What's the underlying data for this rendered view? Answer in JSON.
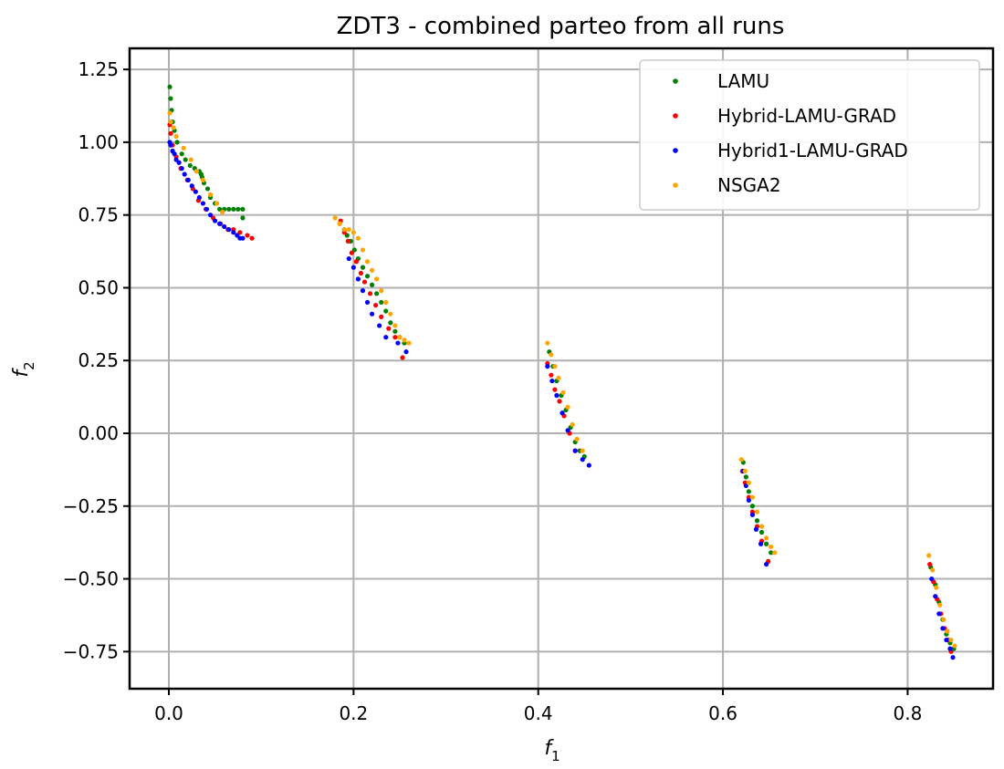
{
  "chart_data": {
    "type": "scatter",
    "title": "ZDT3 - combined parteo from all runs",
    "xlabel": "f",
    "xlabel_sub": "1",
    "ylabel": "f",
    "ylabel_sub": "2",
    "xlim": [
      -0.0425,
      0.8925
    ],
    "ylim": [
      -0.8775,
      1.3225
    ],
    "xticks": [
      0.0,
      0.2,
      0.4,
      0.6,
      0.8
    ],
    "xtick_labels": [
      "0.0",
      "0.2",
      "0.4",
      "0.6",
      "0.8"
    ],
    "yticks": [
      1.25,
      1.0,
      0.75,
      0.5,
      0.25,
      0.0,
      -0.25,
      -0.5,
      -0.75
    ],
    "ytick_labels": [
      "1.25",
      "1.00",
      "0.75",
      "0.50",
      "0.25",
      "0.00",
      "−0.25",
      "−0.50",
      "−0.75"
    ],
    "grid": true,
    "legend_position": "top-right",
    "series": [
      {
        "name": "LAMU",
        "color": "#008000",
        "points": [
          [
            0.001,
            1.19
          ],
          [
            0.002,
            1.15
          ],
          [
            0.003,
            1.11
          ],
          [
            0.004,
            1.07
          ],
          [
            0.006,
            1.04
          ],
          [
            0.009,
            1.0
          ],
          [
            0.014,
            0.96
          ],
          [
            0.018,
            0.94
          ],
          [
            0.023,
            0.92
          ],
          [
            0.028,
            0.91
          ],
          [
            0.033,
            0.9
          ],
          [
            0.035,
            0.89
          ],
          [
            0.036,
            0.88
          ],
          [
            0.038,
            0.86
          ],
          [
            0.042,
            0.84
          ],
          [
            0.045,
            0.81
          ],
          [
            0.05,
            0.79
          ],
          [
            0.055,
            0.77
          ],
          [
            0.06,
            0.77
          ],
          [
            0.065,
            0.77
          ],
          [
            0.07,
            0.77
          ],
          [
            0.075,
            0.77
          ],
          [
            0.08,
            0.77
          ],
          [
            0.08,
            0.74
          ],
          [
            0.185,
            0.72
          ],
          [
            0.19,
            0.7
          ],
          [
            0.193,
            0.68
          ],
          [
            0.197,
            0.66
          ],
          [
            0.201,
            0.63
          ],
          [
            0.205,
            0.6
          ],
          [
            0.21,
            0.57
          ],
          [
            0.215,
            0.54
          ],
          [
            0.22,
            0.51
          ],
          [
            0.225,
            0.48
          ],
          [
            0.23,
            0.45
          ],
          [
            0.235,
            0.42
          ],
          [
            0.24,
            0.38
          ],
          [
            0.245,
            0.35
          ],
          [
            0.25,
            0.33
          ],
          [
            0.255,
            0.31
          ],
          [
            0.412,
            0.28
          ],
          [
            0.416,
            0.23
          ],
          [
            0.42,
            0.18
          ],
          [
            0.425,
            0.13
          ],
          [
            0.43,
            0.08
          ],
          [
            0.435,
            0.02
          ],
          [
            0.44,
            -0.03
          ],
          [
            0.445,
            -0.06
          ],
          [
            0.45,
            -0.08
          ],
          [
            0.622,
            -0.1
          ],
          [
            0.625,
            -0.15
          ],
          [
            0.628,
            -0.2
          ],
          [
            0.632,
            -0.25
          ],
          [
            0.637,
            -0.3
          ],
          [
            0.642,
            -0.34
          ],
          [
            0.647,
            -0.38
          ],
          [
            0.652,
            -0.41
          ],
          [
            0.825,
            -0.46
          ],
          [
            0.83,
            -0.52
          ],
          [
            0.834,
            -0.58
          ],
          [
            0.838,
            -0.64
          ],
          [
            0.842,
            -0.69
          ],
          [
            0.846,
            -0.72
          ],
          [
            0.85,
            -0.74
          ]
        ]
      },
      {
        "name": "Hybrid-LAMU-GRAD",
        "color": "#ff0000",
        "points": [
          [
            0.001,
            1.06
          ],
          [
            0.002,
            1.03
          ],
          [
            0.004,
            0.99
          ],
          [
            0.008,
            0.95
          ],
          [
            0.013,
            0.91
          ],
          [
            0.02,
            0.87
          ],
          [
            0.026,
            0.84
          ],
          [
            0.032,
            0.8
          ],
          [
            0.04,
            0.77
          ],
          [
            0.048,
            0.74
          ],
          [
            0.056,
            0.72
          ],
          [
            0.064,
            0.7
          ],
          [
            0.07,
            0.7
          ],
          [
            0.077,
            0.69
          ],
          [
            0.085,
            0.68
          ],
          [
            0.09,
            0.67
          ],
          [
            0.186,
            0.73
          ],
          [
            0.19,
            0.69
          ],
          [
            0.194,
            0.66
          ],
          [
            0.198,
            0.62
          ],
          [
            0.203,
            0.59
          ],
          [
            0.208,
            0.55
          ],
          [
            0.212,
            0.52
          ],
          [
            0.218,
            0.48
          ],
          [
            0.224,
            0.44
          ],
          [
            0.23,
            0.4
          ],
          [
            0.238,
            0.36
          ],
          [
            0.245,
            0.33
          ],
          [
            0.253,
            0.26
          ],
          [
            0.41,
            0.24
          ],
          [
            0.414,
            0.2
          ],
          [
            0.418,
            0.15
          ],
          [
            0.423,
            0.11
          ],
          [
            0.428,
            0.06
          ],
          [
            0.434,
            0.0
          ],
          [
            0.44,
            -0.06
          ],
          [
            0.621,
            -0.13
          ],
          [
            0.624,
            -0.17
          ],
          [
            0.628,
            -0.22
          ],
          [
            0.632,
            -0.27
          ],
          [
            0.637,
            -0.32
          ],
          [
            0.642,
            -0.37
          ],
          [
            0.649,
            -0.44
          ],
          [
            0.824,
            -0.45
          ],
          [
            0.828,
            -0.51
          ],
          [
            0.832,
            -0.57
          ],
          [
            0.836,
            -0.62
          ],
          [
            0.84,
            -0.67
          ],
          [
            0.844,
            -0.71
          ],
          [
            0.847,
            -0.75
          ]
        ]
      },
      {
        "name": "Hybrid1-LAMU-GRAD",
        "color": "#0000ff",
        "points": [
          [
            0.001,
            1.0
          ],
          [
            0.002,
            0.99
          ],
          [
            0.004,
            0.97
          ],
          [
            0.006,
            0.96
          ],
          [
            0.008,
            0.94
          ],
          [
            0.011,
            0.93
          ],
          [
            0.014,
            0.91
          ],
          [
            0.017,
            0.89
          ],
          [
            0.021,
            0.87
          ],
          [
            0.025,
            0.85
          ],
          [
            0.029,
            0.83
          ],
          [
            0.033,
            0.81
          ],
          [
            0.037,
            0.79
          ],
          [
            0.041,
            0.77
          ],
          [
            0.045,
            0.75
          ],
          [
            0.05,
            0.73
          ],
          [
            0.055,
            0.72
          ],
          [
            0.06,
            0.71
          ],
          [
            0.065,
            0.7
          ],
          [
            0.07,
            0.69
          ],
          [
            0.074,
            0.68
          ],
          [
            0.077,
            0.67
          ],
          [
            0.08,
            0.67
          ],
          [
            0.195,
            0.6
          ],
          [
            0.2,
            0.57
          ],
          [
            0.205,
            0.53
          ],
          [
            0.21,
            0.49
          ],
          [
            0.215,
            0.45
          ],
          [
            0.22,
            0.41
          ],
          [
            0.228,
            0.37
          ],
          [
            0.235,
            0.33
          ],
          [
            0.248,
            0.31
          ],
          [
            0.257,
            0.28
          ],
          [
            0.41,
            0.23
          ],
          [
            0.415,
            0.18
          ],
          [
            0.42,
            0.13
          ],
          [
            0.426,
            0.07
          ],
          [
            0.432,
            0.01
          ],
          [
            0.44,
            -0.06
          ],
          [
            0.448,
            -0.09
          ],
          [
            0.455,
            -0.11
          ],
          [
            0.622,
            -0.13
          ],
          [
            0.625,
            -0.18
          ],
          [
            0.628,
            -0.23
          ],
          [
            0.632,
            -0.28
          ],
          [
            0.636,
            -0.33
          ],
          [
            0.641,
            -0.38
          ],
          [
            0.647,
            -0.45
          ],
          [
            0.826,
            -0.5
          ],
          [
            0.83,
            -0.56
          ],
          [
            0.834,
            -0.62
          ],
          [
            0.838,
            -0.67
          ],
          [
            0.842,
            -0.71
          ],
          [
            0.846,
            -0.74
          ],
          [
            0.849,
            -0.77
          ]
        ]
      },
      {
        "name": "NSGA2",
        "color": "#ffa500",
        "points": [
          [
            0.001,
            1.1
          ],
          [
            0.002,
            1.07
          ],
          [
            0.005,
            1.05
          ],
          [
            0.008,
            1.02
          ],
          [
            0.016,
            0.98
          ],
          [
            0.024,
            0.94
          ],
          [
            0.03,
            0.9
          ],
          [
            0.037,
            0.87
          ],
          [
            0.045,
            0.82
          ],
          [
            0.052,
            0.79
          ],
          [
            0.058,
            0.76
          ],
          [
            0.18,
            0.74
          ],
          [
            0.185,
            0.72
          ],
          [
            0.19,
            0.7
          ],
          [
            0.195,
            0.7
          ],
          [
            0.2,
            0.69
          ],
          [
            0.205,
            0.67
          ],
          [
            0.21,
            0.63
          ],
          [
            0.215,
            0.59
          ],
          [
            0.22,
            0.56
          ],
          [
            0.225,
            0.53
          ],
          [
            0.23,
            0.49
          ],
          [
            0.235,
            0.45
          ],
          [
            0.24,
            0.41
          ],
          [
            0.245,
            0.37
          ],
          [
            0.25,
            0.33
          ],
          [
            0.255,
            0.32
          ],
          [
            0.26,
            0.31
          ],
          [
            0.41,
            0.31
          ],
          [
            0.414,
            0.27
          ],
          [
            0.418,
            0.23
          ],
          [
            0.422,
            0.19
          ],
          [
            0.427,
            0.14
          ],
          [
            0.432,
            0.09
          ],
          [
            0.437,
            0.03
          ],
          [
            0.442,
            -0.02
          ],
          [
            0.448,
            -0.06
          ],
          [
            0.62,
            -0.09
          ],
          [
            0.624,
            -0.13
          ],
          [
            0.628,
            -0.17
          ],
          [
            0.632,
            -0.22
          ],
          [
            0.637,
            -0.27
          ],
          [
            0.642,
            -0.32
          ],
          [
            0.647,
            -0.36
          ],
          [
            0.652,
            -0.39
          ],
          [
            0.656,
            -0.41
          ],
          [
            0.823,
            -0.42
          ],
          [
            0.827,
            -0.47
          ],
          [
            0.831,
            -0.53
          ],
          [
            0.835,
            -0.59
          ],
          [
            0.839,
            -0.64
          ],
          [
            0.843,
            -0.68
          ],
          [
            0.847,
            -0.71
          ],
          [
            0.851,
            -0.73
          ]
        ]
      }
    ]
  }
}
